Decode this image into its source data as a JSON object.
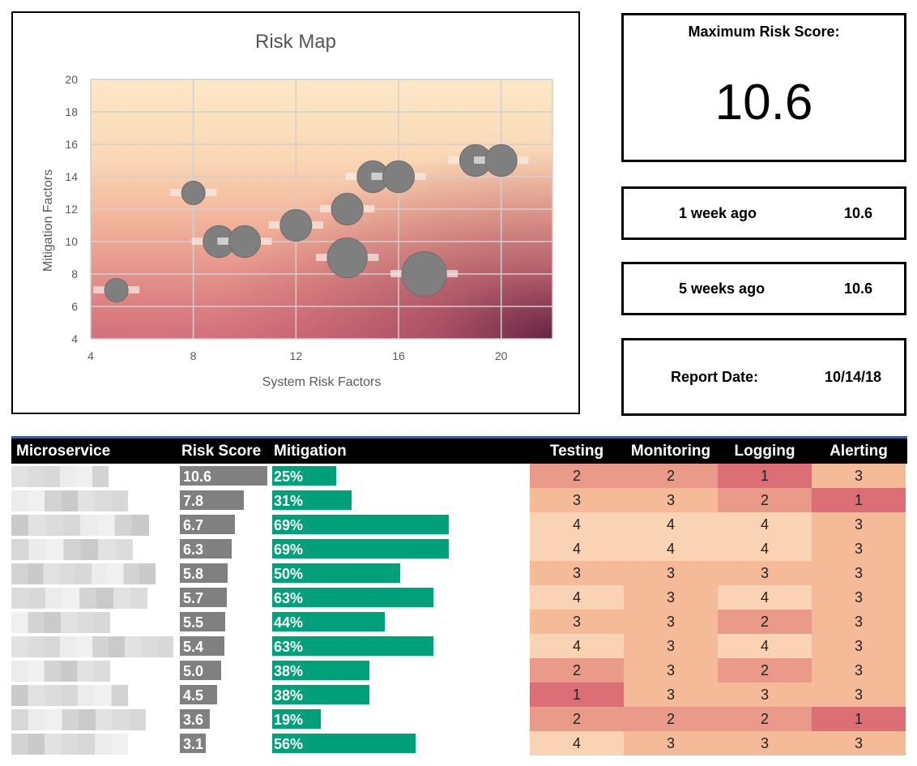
{
  "chart_data": {
    "type": "scatter",
    "title": "Risk Map",
    "xlabel": "System Risk Factors",
    "ylabel": "Mitigation Factors",
    "xlim": [
      4,
      22
    ],
    "ylim": [
      4,
      20
    ],
    "xticks": [
      "4",
      "8",
      "12",
      "16",
      "20"
    ],
    "yticks": [
      "4",
      "6",
      "8",
      "10",
      "12",
      "14",
      "16",
      "18",
      "20"
    ],
    "grid": true,
    "background": "gradient from light cream (top) to dark maroon (bottom-right)",
    "bubble_color": "#7f7f7f",
    "points": [
      {
        "x": 5,
        "y": 7,
        "size": 1.0
      },
      {
        "x": 8,
        "y": 13,
        "size": 1.0
      },
      {
        "x": 9,
        "y": 10,
        "size": 1.35
      },
      {
        "x": 10,
        "y": 10,
        "size": 1.35
      },
      {
        "x": 12,
        "y": 11,
        "size": 1.35
      },
      {
        "x": 14,
        "y": 12,
        "size": 1.35
      },
      {
        "x": 14,
        "y": 9,
        "size": 1.7
      },
      {
        "x": 15,
        "y": 14,
        "size": 1.35
      },
      {
        "x": 16,
        "y": 14,
        "size": 1.35
      },
      {
        "x": 17,
        "y": 8,
        "size": 1.9
      },
      {
        "x": 19,
        "y": 15,
        "size": 1.35
      },
      {
        "x": 20,
        "y": 15,
        "size": 1.35
      }
    ]
  },
  "kpis": {
    "max_label": "Maximum Risk Score:",
    "max_value": "10.6",
    "history": [
      {
        "label": "1 week ago",
        "value": "10.6"
      },
      {
        "label": "5 weeks ago",
        "value": "10.6"
      }
    ],
    "report_date_label": "Report Date:",
    "report_date_value": "10/14/18"
  },
  "table": {
    "headers": {
      "microservice": "Microservice",
      "risk_score": "Risk Score",
      "mitigation": "Mitigation",
      "testing": "Testing",
      "monitoring": "Monitoring",
      "logging": "Logging",
      "alerting": "Alerting"
    },
    "heat_colors": {
      "1": "#dc6e76",
      "2": "#ea9a88",
      "3": "#f5bb98",
      "4": "#f9d3b3"
    },
    "rows": [
      {
        "score": "10.6",
        "score_value": 10.6,
        "mitigation": "25%",
        "mitigation_value": 0.25,
        "testing": "2",
        "monitoring": "2",
        "logging": "1",
        "alerting": "3"
      },
      {
        "score": "7.8",
        "score_value": 7.8,
        "mitigation": "31%",
        "mitigation_value": 0.31,
        "testing": "3",
        "monitoring": "3",
        "logging": "2",
        "alerting": "1"
      },
      {
        "score": "6.7",
        "score_value": 6.7,
        "mitigation": "69%",
        "mitigation_value": 0.69,
        "testing": "4",
        "monitoring": "4",
        "logging": "4",
        "alerting": "3"
      },
      {
        "score": "6.3",
        "score_value": 6.3,
        "mitigation": "69%",
        "mitigation_value": 0.69,
        "testing": "4",
        "monitoring": "4",
        "logging": "4",
        "alerting": "3"
      },
      {
        "score": "5.8",
        "score_value": 5.8,
        "mitigation": "50%",
        "mitigation_value": 0.5,
        "testing": "3",
        "monitoring": "3",
        "logging": "3",
        "alerting": "3"
      },
      {
        "score": "5.7",
        "score_value": 5.7,
        "mitigation": "63%",
        "mitigation_value": 0.63,
        "testing": "4",
        "monitoring": "3",
        "logging": "4",
        "alerting": "3"
      },
      {
        "score": "5.5",
        "score_value": 5.5,
        "mitigation": "44%",
        "mitigation_value": 0.44,
        "testing": "3",
        "monitoring": "3",
        "logging": "2",
        "alerting": "3"
      },
      {
        "score": "5.4",
        "score_value": 5.4,
        "mitigation": "63%",
        "mitigation_value": 0.63,
        "testing": "4",
        "monitoring": "3",
        "logging": "4",
        "alerting": "3"
      },
      {
        "score": "5.0",
        "score_value": 5.0,
        "mitigation": "38%",
        "mitigation_value": 0.38,
        "testing": "2",
        "monitoring": "3",
        "logging": "2",
        "alerting": "3"
      },
      {
        "score": "4.5",
        "score_value": 4.5,
        "mitigation": "38%",
        "mitigation_value": 0.38,
        "testing": "1",
        "monitoring": "3",
        "logging": "3",
        "alerting": "3"
      },
      {
        "score": "3.6",
        "score_value": 3.6,
        "mitigation": "19%",
        "mitigation_value": 0.19,
        "testing": "2",
        "monitoring": "2",
        "logging": "2",
        "alerting": "1"
      },
      {
        "score": "3.1",
        "score_value": 3.1,
        "mitigation": "56%",
        "mitigation_value": 0.56,
        "testing": "4",
        "monitoring": "3",
        "logging": "3",
        "alerting": "3"
      }
    ]
  }
}
